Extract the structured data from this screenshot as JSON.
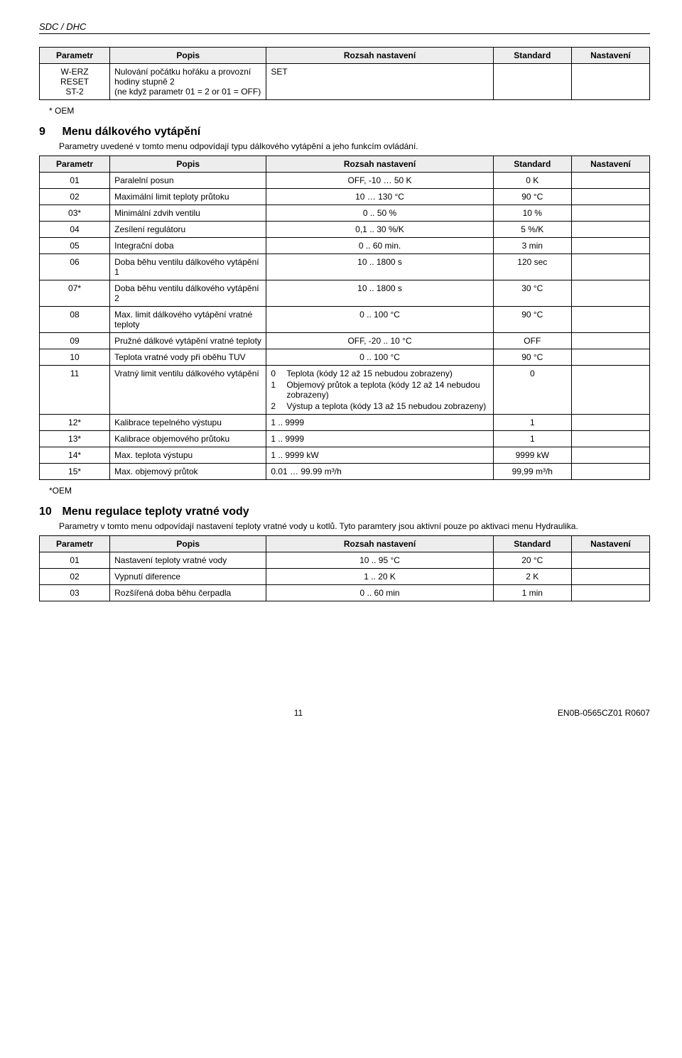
{
  "header": "SDC / DHC",
  "table_headers": {
    "parametr": "Parametr",
    "popis": "Popis",
    "rozsah": "Rozsah nastavení",
    "standard": "Standard",
    "nastaveni": "Nastavení"
  },
  "table0": {
    "rows": [
      {
        "param": "W-ERZ\nRESET\nST-2",
        "popis": "Nulování počátku hořáku a provozní hodiny stupně 2\n(ne když parametr 01 = 2 or 01 = OFF)",
        "rozsah": "SET",
        "standard": ""
      }
    ],
    "note": "* OEM"
  },
  "section9": {
    "num": "9",
    "title": "Menu dálkového vytápění",
    "intro": "Parametry uvedené v tomto menu odpovídají typu dálkového vytápění a jeho funkcím ovládání.",
    "rows": [
      {
        "param": "01",
        "popis": "Paralelní posun",
        "rozsah": "OFF, -10 … 50 K",
        "standard": "0 K"
      },
      {
        "param": "02",
        "popis": "Maximální limit teploty průtoku",
        "rozsah": "10 … 130 °C",
        "standard": "90 °C"
      },
      {
        "param": "03*",
        "popis": "Minimální zdvih ventilu",
        "rozsah": "0 .. 50 %",
        "standard": "10 %"
      },
      {
        "param": "04",
        "popis": "Zesílení regulátoru",
        "rozsah": "0,1 .. 30 %/K",
        "standard": "5 %/K"
      },
      {
        "param": "05",
        "popis": "Integrační doba",
        "rozsah": "0 .. 60 min.",
        "standard": "3 min"
      },
      {
        "param": "06",
        "popis": "Doba běhu ventilu dálkového vytápění 1",
        "rozsah": "10 .. 1800 s",
        "standard": "120 sec"
      },
      {
        "param": "07*",
        "popis": "Doba běhu ventilu dálkového vytápění 2",
        "rozsah": "10 .. 1800 s",
        "standard": "30 °C"
      },
      {
        "param": "08",
        "popis": "Max. limit dálkového vytápění vratné teploty",
        "rozsah": "0 .. 100 °C",
        "standard": "90 °C"
      },
      {
        "param": "09",
        "popis": "Pružné dálkové vytápění vratné teploty",
        "rozsah": "OFF, -20 .. 10 °C",
        "standard": "OFF"
      },
      {
        "param": "10",
        "popis": "Teplota vratné vody při oběhu TUV",
        "rozsah": "0 .. 100 °C",
        "standard": "90 °C"
      }
    ],
    "row11": {
      "param": "11",
      "popis": "Vratný limit ventilu dálkového vytápění",
      "standard": "0",
      "items": [
        {
          "n": "0",
          "t": "Teplota (kódy 12 až 15 nebudou zobrazeny)"
        },
        {
          "n": "1",
          "t": "Objemový průtok a teplota (kódy 12 až 14 nebudou zobrazeny)"
        },
        {
          "n": "2",
          "t": "Výstup a teplota (kódy 13 až 15 nebudou zobrazeny)"
        }
      ]
    },
    "rows2": [
      {
        "param": "12*",
        "popis": "Kalibrace tepelného výstupu",
        "rozsah": "1 .. 9999",
        "standard": "1"
      },
      {
        "param": "13*",
        "popis": "Kalibrace objemového průtoku",
        "rozsah": "1 .. 9999",
        "standard": "1"
      },
      {
        "param": "14*",
        "popis": "Max. teplota výstupu",
        "rozsah": "1 .. 9999 kW",
        "standard": "9999 kW"
      },
      {
        "param": "15*",
        "popis": "Max. objemový průtok",
        "rozsah": "0.01 … 99.99 m³/h",
        "standard": "99,99 m³/h"
      }
    ],
    "note": "*OEM"
  },
  "section10": {
    "num": "10",
    "title": "Menu regulace teploty vratné vody",
    "intro": "Parametry v tomto menu odpovídají nastavení teploty vratné vody u kotlů. Tyto paramtery jsou aktivní pouze po aktivaci menu Hydraulika.",
    "header_std": "Standard",
    "rows": [
      {
        "param": "01",
        "popis": "Nastavení teploty vratné vody",
        "rozsah": "10 .. 95 °C",
        "standard": "20 °C"
      },
      {
        "param": "02",
        "popis": "Vypnutí diference",
        "rozsah": "1 .. 20 K",
        "standard": "2 K"
      },
      {
        "param": "03",
        "popis": "Rozšířená doba běhu čerpadla",
        "rozsah": "0 .. 60 min",
        "standard": "1 min"
      }
    ]
  },
  "footer": {
    "page": "11",
    "doc": "EN0B-0565CZ01 R0607"
  }
}
